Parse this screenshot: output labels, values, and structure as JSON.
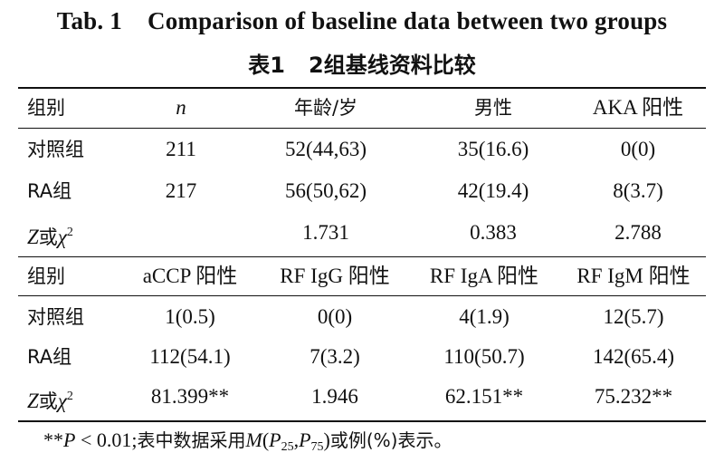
{
  "title_en": {
    "label": "Tab. 1",
    "text": "Comparison of baseline data between two groups"
  },
  "title_zh": {
    "label": "表1",
    "text": "2组基线资料比较"
  },
  "table1": {
    "headers": [
      "组别",
      "n",
      "年龄/岁",
      "男性",
      "AKA 阳性"
    ],
    "rows": [
      [
        "对照组",
        "211",
        "52(44,63)",
        "35(16.6)",
        "0(0)"
      ],
      [
        "RA组",
        "217",
        "56(50,62)",
        "42(19.4)",
        "8(3.7)"
      ]
    ],
    "stat": {
      "letter": "Z",
      "or": "或",
      "chi": "χ",
      "sup": "2",
      "values": [
        "",
        "1.731",
        "0.383",
        "2.788"
      ]
    }
  },
  "table2": {
    "headers": [
      "组别",
      "aCCP 阳性",
      "RF IgG 阳性",
      "RF IgA 阳性",
      "RF IgM 阳性"
    ],
    "rows": [
      [
        "对照组",
        "1(0.5)",
        "0(0)",
        "4(1.9)",
        "12(5.7)"
      ],
      [
        "RA组",
        "112(54.1)",
        "7(3.2)",
        "110(50.7)",
        "142(65.4)"
      ]
    ],
    "stat": {
      "letter": "Z",
      "or": "或",
      "chi": "χ",
      "sup": "2",
      "values": [
        "81.399**",
        "1.946",
        "62.151**",
        "75.232**"
      ]
    }
  },
  "note": {
    "stars": "**",
    "p": "P",
    "cond": " < 0.01;",
    "text1": "表中数据采用",
    "m": "M",
    "open": "(",
    "p25": "P",
    "sub25": "25",
    "comma": ",",
    "p75": "P",
    "sub75": "75",
    "close": ")",
    "text2": "或例(%)表示。"
  }
}
